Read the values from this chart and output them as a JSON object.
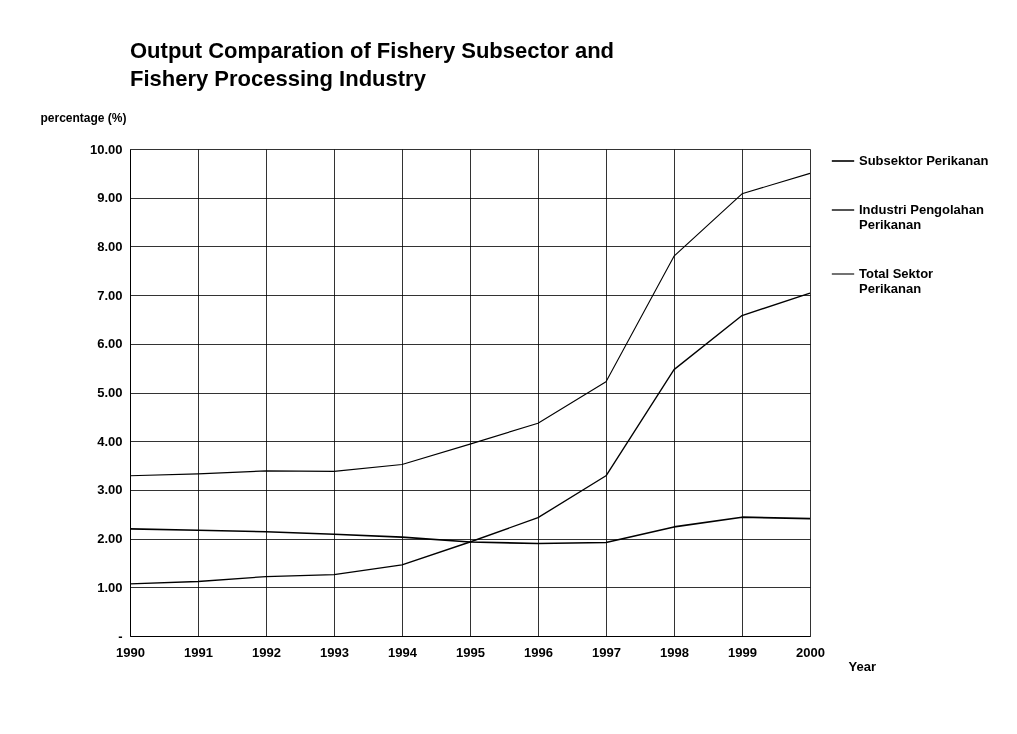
{
  "chart_data": {
    "type": "line",
    "title": "Output Comparation of Fishery Subsector and Fishery Processing Industry",
    "xlabel": "Year",
    "ylabel": "percentage (%)",
    "categories": [
      "1990",
      "1991",
      "1992",
      "1993",
      "1994",
      "1995",
      "1996",
      "1997",
      "1998",
      "1999",
      "2000"
    ],
    "series": [
      {
        "name": "Subsektor Perikanan",
        "color": "#000000",
        "values": [
          2.2,
          2.17,
          2.14,
          2.09,
          2.03,
          1.93,
          1.9,
          1.92,
          2.24,
          2.44,
          2.41
        ]
      },
      {
        "name": "Industri Pengolahan Perikanan",
        "color": "#000000",
        "values": [
          1.07,
          1.12,
          1.22,
          1.26,
          1.46,
          1.93,
          2.43,
          3.29,
          5.47,
          6.58,
          7.04
        ]
      },
      {
        "name": "Total Sektor Perikanan",
        "color": "#000000",
        "values": [
          3.29,
          3.33,
          3.39,
          3.38,
          3.52,
          3.94,
          4.37,
          5.22,
          7.8,
          9.08,
          9.5
        ]
      }
    ],
    "ylim": [
      0,
      10
    ],
    "yticks": [
      {
        "value": 0,
        "label": "-"
      },
      {
        "value": 1,
        "label": "1.00"
      },
      {
        "value": 2,
        "label": "2.00"
      },
      {
        "value": 3,
        "label": "3.00"
      },
      {
        "value": 4,
        "label": "4.00"
      },
      {
        "value": 5,
        "label": "5.00"
      },
      {
        "value": 6,
        "label": "6.00"
      },
      {
        "value": 7,
        "label": "7.00"
      },
      {
        "value": 8,
        "label": "8.00"
      },
      {
        "value": 9,
        "label": "9.00"
      },
      {
        "value": 10,
        "label": "10.00"
      }
    ],
    "grid": true,
    "legend": "right",
    "marker": "none",
    "line_style": "solid"
  }
}
